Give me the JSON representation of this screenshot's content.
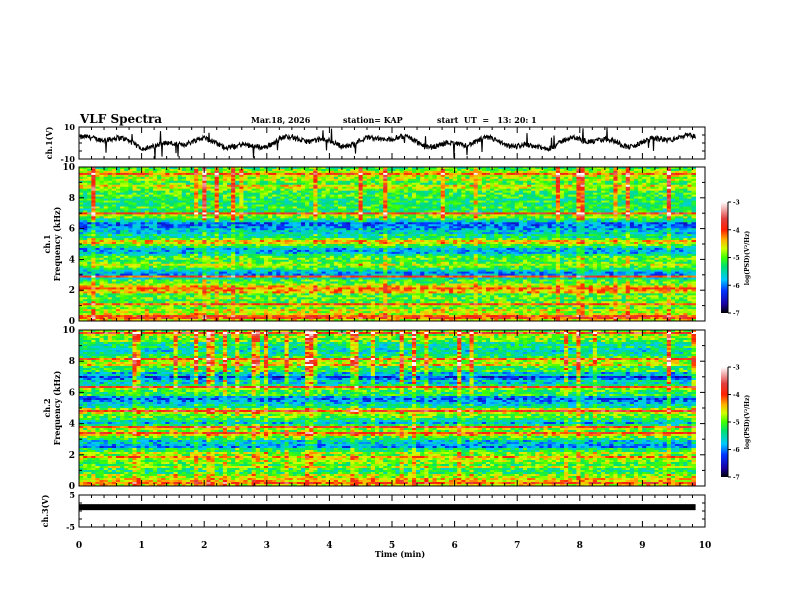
{
  "header": {
    "title": "VLF Spectra",
    "date": "Mar.18, 2026",
    "station": "station= KAP",
    "start_ut": "start  UT  =   13: 20: 1"
  },
  "chart_data": [
    {
      "type": "line",
      "panel": "ch1-waveform",
      "ylabel": "ch.1(V)",
      "ylim": [
        -10,
        10
      ],
      "yticks": [
        "10",
        "-10"
      ],
      "xlim": [
        0,
        10
      ],
      "x_end": 9.85,
      "trace_color": "#000000",
      "description_values": "noisy waveform fluctuating roughly between -9 and 9 V"
    },
    {
      "type": "heatmap",
      "panel": "ch1-spectrogram",
      "ylabel_line1": "ch.1",
      "ylabel_line2": "Frequency (kHz)",
      "ylim": [
        0,
        10
      ],
      "yticks": [
        "0",
        "2",
        "4",
        "6",
        "8",
        "10"
      ],
      "xlim": [
        0,
        10
      ],
      "x_end": 9.85,
      "colorbar": {
        "label": "log(PSD)(V²/Hz)",
        "range": [
          -7,
          -3
        ],
        "ticks": [
          "-3",
          "-4",
          "-5",
          "-6",
          "-7"
        ]
      },
      "bands_khz": [
        {
          "f": 9.2,
          "level": -4.9
        },
        {
          "f": 8.5,
          "level": -4.8
        },
        {
          "f": 7.5,
          "level": -5.4
        },
        {
          "f": 6.8,
          "level": -4.6
        },
        {
          "f": 6.2,
          "level": -6.2
        },
        {
          "f": 5.6,
          "level": -5.6
        },
        {
          "f": 5.1,
          "level": -4.4
        },
        {
          "f": 4.6,
          "level": -5.7
        },
        {
          "f": 3.6,
          "level": -4.6
        },
        {
          "f": 3.0,
          "level": -5.9
        },
        {
          "f": 2.2,
          "level": -4.2
        },
        {
          "f": 1.5,
          "level": -5.2
        },
        {
          "f": 0.8,
          "level": -4.8
        },
        {
          "f": 0.3,
          "level": -4.3
        }
      ]
    },
    {
      "type": "heatmap",
      "panel": "ch2-spectrogram",
      "ylabel_line1": "ch.2",
      "ylabel_line2": "Frequency (kHz)",
      "ylim": [
        0,
        10
      ],
      "yticks": [
        "0",
        "2",
        "4",
        "6",
        "8",
        "10"
      ],
      "xlim": [
        0,
        10
      ],
      "x_end": 9.85,
      "colorbar": {
        "label": "log(PSD)(V²/Hz)",
        "range": [
          -7,
          -3
        ],
        "ticks": [
          "-3",
          "-4",
          "-5",
          "-6",
          "-7"
        ]
      },
      "bands_khz": [
        {
          "f": 9.4,
          "level": -5.0
        },
        {
          "f": 8.6,
          "level": -5.4
        },
        {
          "f": 7.8,
          "level": -4.6
        },
        {
          "f": 7.0,
          "level": -6.1
        },
        {
          "f": 6.2,
          "level": -4.9
        },
        {
          "f": 5.5,
          "level": -6.0
        },
        {
          "f": 4.7,
          "level": -4.5
        },
        {
          "f": 4.1,
          "level": -5.7
        },
        {
          "f": 3.4,
          "level": -4.5
        },
        {
          "f": 2.6,
          "level": -6.0
        },
        {
          "f": 1.8,
          "level": -4.5
        },
        {
          "f": 1.0,
          "level": -5.1
        },
        {
          "f": 0.3,
          "level": -4.3
        }
      ]
    },
    {
      "type": "line",
      "panel": "ch3-waveform",
      "ylabel": "ch.3(V)",
      "ylim": [
        -5,
        5
      ],
      "yticks": [
        "5",
        "-5"
      ],
      "xlim": [
        0,
        10
      ],
      "x_end": 9.85,
      "constant_value": 1.2,
      "trace_color": "#000000"
    }
  ],
  "x_axis": {
    "label": "Time (min)",
    "ticks": [
      "0",
      "1",
      "2",
      "3",
      "4",
      "5",
      "6",
      "7",
      "8",
      "9",
      "10"
    ]
  }
}
